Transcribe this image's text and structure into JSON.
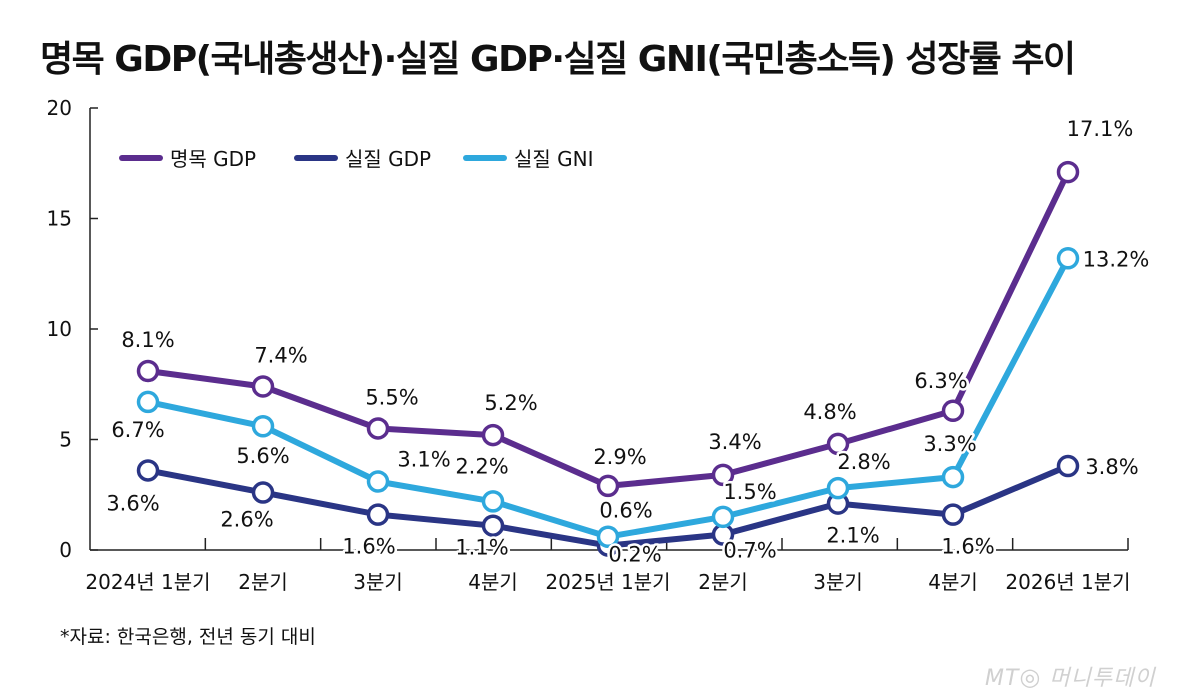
{
  "title": "명목 GDP(국내총생산)·실질 GDP·실질 GNI(국민총소득) 성장률 추이",
  "source": "*자료: 한국은행, 전년 동기 대비",
  "watermark": "MT 머니투데이",
  "chart_data": {
    "type": "line",
    "categories": [
      "2024년 1분기",
      "2분기",
      "3분기",
      "4분기",
      "2025년 1분기",
      "2분기",
      "3분기",
      "4분기",
      "2026년 1분기"
    ],
    "ylim": [
      0,
      20
    ],
    "yticks": [
      "0",
      "5",
      "10",
      "15",
      "20"
    ],
    "grid": false,
    "legend_position": "top-left",
    "series": [
      {
        "name": "명목 GDP",
        "color": "#5b2d8e",
        "values": [
          8.1,
          7.4,
          5.5,
          5.2,
          2.9,
          3.4,
          4.8,
          6.3,
          17.1
        ],
        "labels": [
          "8.1%",
          "7.4%",
          "5.5%",
          "5.2%",
          "2.9%",
          "3.4%",
          "4.8%",
          "6.3%",
          "17.1%"
        ]
      },
      {
        "name": "실질 GDP",
        "color": "#2a3585",
        "values": [
          3.6,
          2.6,
          1.6,
          1.1,
          0.2,
          0.7,
          2.1,
          1.6,
          3.8
        ],
        "labels": [
          "3.6%",
          "2.6%",
          "1.6%",
          "1.1%",
          "0.2%",
          "0.7%",
          "2.1%",
          "1.6%",
          "3.8%"
        ]
      },
      {
        "name": "실질 GNI",
        "color": "#2ea8dd",
        "values": [
          6.7,
          5.6,
          3.1,
          2.2,
          0.6,
          1.5,
          2.8,
          3.3,
          13.2
        ],
        "labels": [
          "6.7%",
          "5.6%",
          "3.1%",
          "2.2%",
          "0.6%",
          "1.5%",
          "2.8%",
          "3.3%",
          "13.2%"
        ]
      }
    ]
  }
}
